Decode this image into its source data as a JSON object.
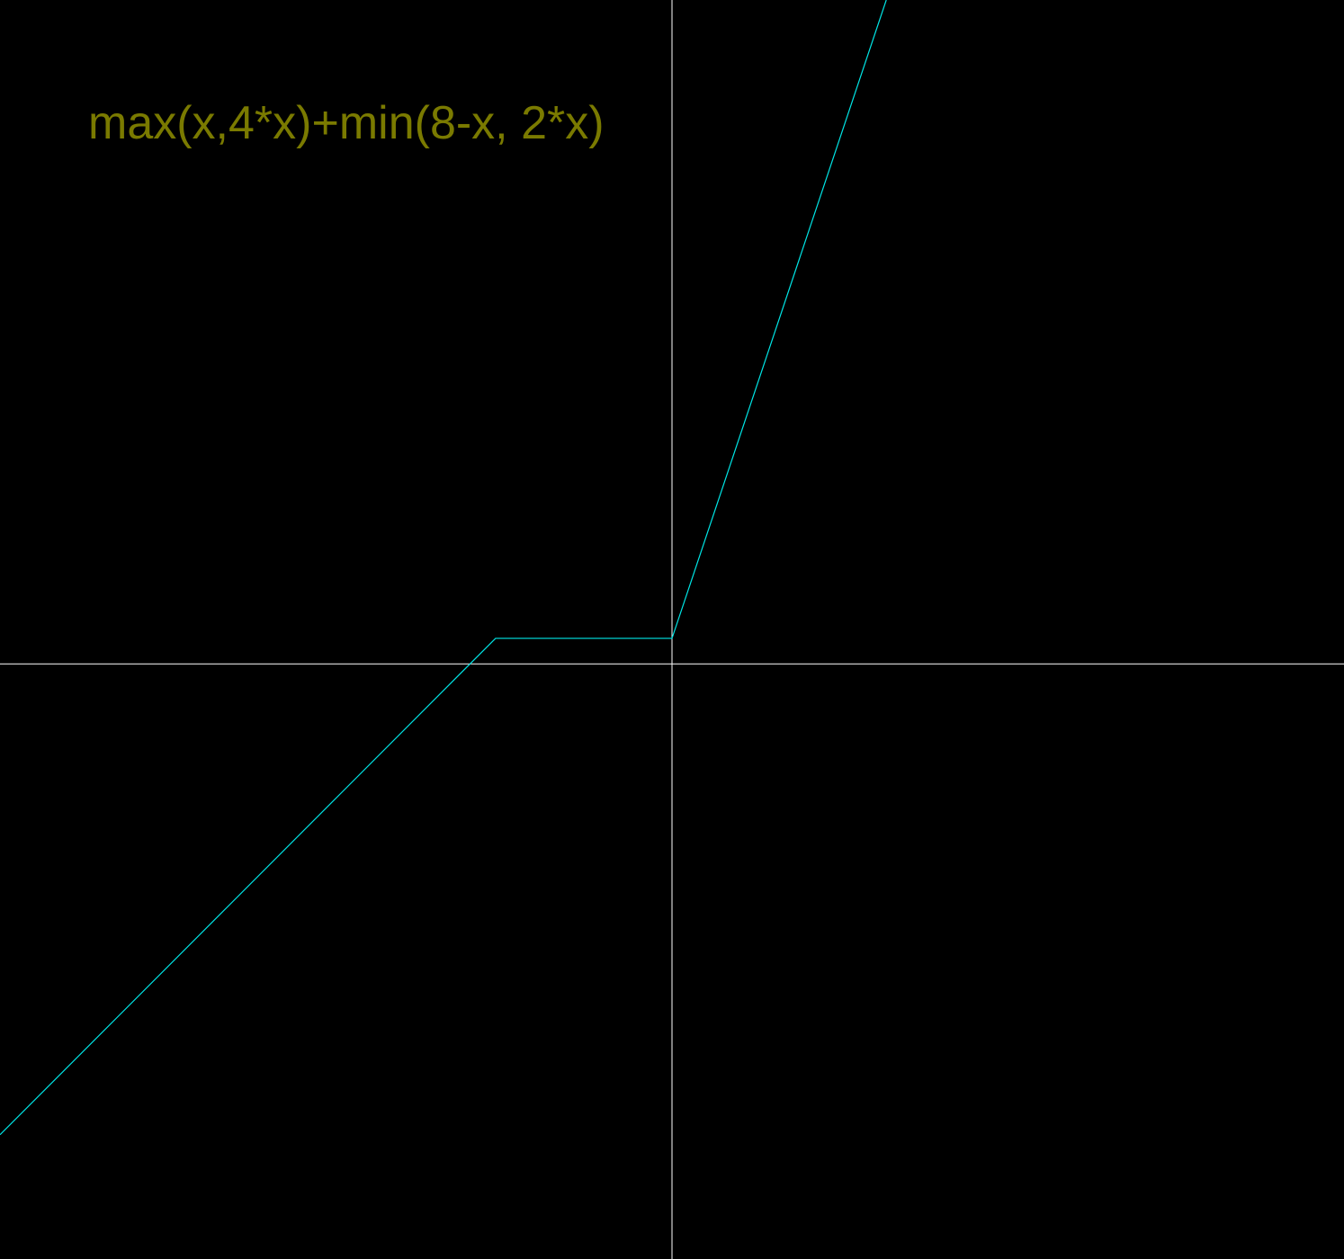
{
  "chart_data": {
    "type": "line",
    "title": "max(x,4*x)+min(8-x, 2*x)",
    "xlabel": "",
    "ylabel": "",
    "xlim": [
      -7.62,
      7.62
    ],
    "ylim": [
      -6.75,
      7.53
    ],
    "grid": false,
    "legend": "none",
    "series": [
      {
        "color": "#00e5e5",
        "x": [
          -7.62,
          -2,
          0,
          2.43
        ],
        "y": [
          -5.34,
          0.29,
          0.29,
          7.53
        ]
      }
    ]
  },
  "colors": {
    "background": "#000000",
    "axes": "#ffffff",
    "curve": "#00e5e5",
    "label": "#7a7a00"
  }
}
